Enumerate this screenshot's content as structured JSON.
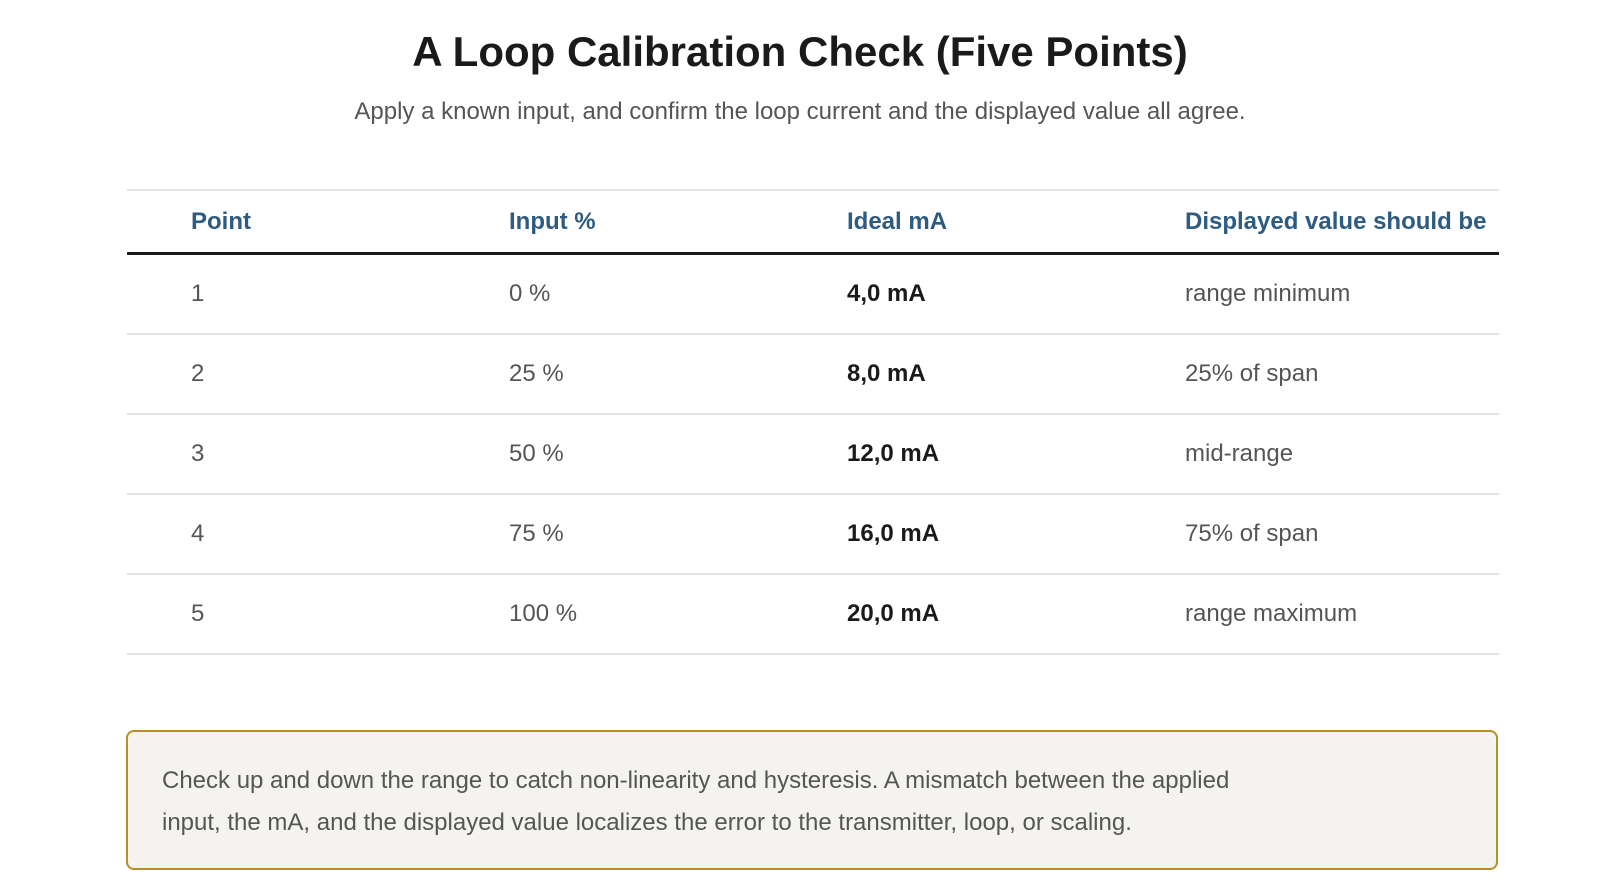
{
  "header": {
    "title": "A Loop Calibration Check (Five Points)",
    "subtitle": "Apply a known input, and confirm the loop current and the displayed value all agree."
  },
  "table": {
    "columns": [
      "Point",
      "Input %",
      "Ideal mA",
      "Displayed value should be"
    ],
    "rows": [
      {
        "point": "1",
        "input": "0 %",
        "ideal_ma": "4,0 mA",
        "displayed": "range minimum"
      },
      {
        "point": "2",
        "input": "25 %",
        "ideal_ma": "8,0 mA",
        "displayed": "25% of span"
      },
      {
        "point": "3",
        "input": "50 %",
        "ideal_ma": "12,0 mA",
        "displayed": "mid-range"
      },
      {
        "point": "4",
        "input": "75 %",
        "ideal_ma": "16,0 mA",
        "displayed": "75% of span"
      },
      {
        "point": "5",
        "input": "100 %",
        "ideal_ma": "20,0 mA",
        "displayed": "range maximum"
      }
    ]
  },
  "note": {
    "text": "Check up and down the range to catch non-linearity and hysteresis. A mismatch between the applied input, the mA, and the displayed value localizes the error to the transmitter, loop, or scaling."
  },
  "colors": {
    "header_text": "#2d5b82",
    "note_border": "#b8902a",
    "note_background": "#f4f3ef"
  }
}
